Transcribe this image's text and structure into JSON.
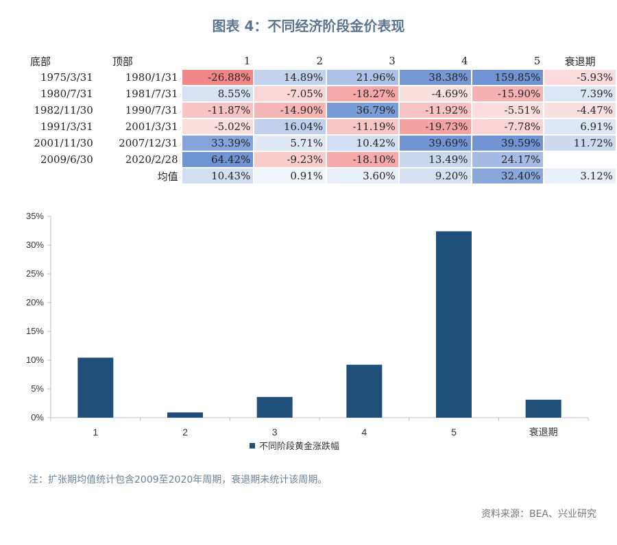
{
  "title": "图表 4：不同经济阶段金价表现",
  "table": {
    "headers": [
      "底部",
      "顶部",
      "1",
      "2",
      "3",
      "4",
      "5",
      "衰退期"
    ],
    "rows": [
      {
        "bottom": "1975/3/31",
        "top": "1980/1/31",
        "cells": [
          "-26.88%",
          "14.89%",
          "21.96%",
          "38.38%",
          "159.85%",
          "-5.93%"
        ],
        "values": [
          -26.88,
          14.89,
          21.96,
          38.38,
          159.85,
          -5.93
        ]
      },
      {
        "bottom": "1980/7/31",
        "top": "1981/7/31",
        "cells": [
          "8.55%",
          "-7.05%",
          "-18.27%",
          "-4.69%",
          "-15.90%",
          "7.39%"
        ],
        "values": [
          8.55,
          -7.05,
          -18.27,
          -4.69,
          -15.9,
          7.39
        ]
      },
      {
        "bottom": "1982/11/30",
        "top": "1990/7/31",
        "cells": [
          "-11.87%",
          "-14.90%",
          "36.79%",
          "-11.92%",
          "-5.51%",
          "-4.47%"
        ],
        "values": [
          -11.87,
          -14.9,
          36.79,
          -11.92,
          -5.51,
          -4.47
        ]
      },
      {
        "bottom": "1991/3/31",
        "top": "2001/3/31",
        "cells": [
          "-5.02%",
          "16.04%",
          "-11.19%",
          "-19.73%",
          "-7.78%",
          "6.91%"
        ],
        "values": [
          -5.02,
          16.04,
          -11.19,
          -19.73,
          -7.78,
          6.91
        ]
      },
      {
        "bottom": "2001/11/30",
        "top": "2007/12/31",
        "cells": [
          "33.39%",
          "5.71%",
          "10.42%",
          "39.69%",
          "39.59%",
          "11.72%"
        ],
        "values": [
          33.39,
          5.71,
          10.42,
          39.69,
          39.59,
          11.72
        ]
      },
      {
        "bottom": "2009/6/30",
        "top": "2020/2/28",
        "cells": [
          "64.42%",
          "-9.23%",
          "-18.10%",
          "13.49%",
          "24.17%",
          ""
        ],
        "values": [
          64.42,
          -9.23,
          -18.1,
          13.49,
          24.17,
          null
        ]
      },
      {
        "bottom": "",
        "top": "均值",
        "cells": [
          "10.43%",
          "0.91%",
          "3.60%",
          "9.20%",
          "32.40%",
          "3.12%"
        ],
        "values": [
          10.43,
          0.91,
          3.6,
          9.2,
          32.4,
          3.12
        ]
      }
    ]
  },
  "chart_data": {
    "type": "bar",
    "categories": [
      "1",
      "2",
      "3",
      "4",
      "5",
      "衰退期"
    ],
    "series": [
      {
        "name": "不同阶段黄金涨跌幅",
        "values": [
          10.43,
          0.91,
          3.6,
          9.2,
          32.4,
          3.12
        ]
      }
    ],
    "ylim": [
      0,
      35
    ],
    "yticks": [
      0,
      5,
      10,
      15,
      20,
      25,
      30,
      35
    ],
    "ytick_labels": [
      "0%",
      "5%",
      "10%",
      "15%",
      "20%",
      "25%",
      "30%",
      "35%"
    ],
    "legend": "bottom-center",
    "bar_color": "#1f4e79"
  },
  "heat_colors": {
    "positive": "#4a78c8",
    "negative": "#ea4a4a"
  },
  "note": "注：扩张期均值统计包含2009至2020年周期，衰退期未统计该周期。",
  "source": "资料来源：BEA、兴业研究"
}
